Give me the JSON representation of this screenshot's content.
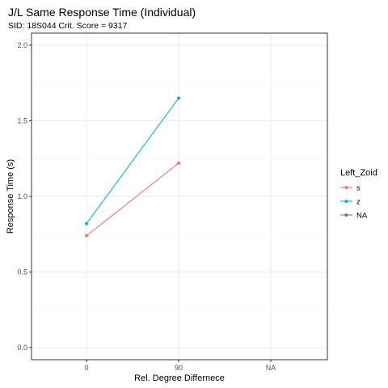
{
  "chart_data": {
    "type": "line",
    "title": "J/L Same Response Time (Individual)",
    "subtitle": "SID:  18S044 Crit. Score =  9317",
    "xlabel": "Rel. Degree Differnece",
    "ylabel": "Response Time (s)",
    "categories": [
      "0",
      "90",
      "NA"
    ],
    "ylim": [
      -0.08,
      2.08
    ],
    "yticks": [
      0.0,
      0.5,
      1.0,
      1.5,
      2.0
    ],
    "ytick_labels": [
      "0.0",
      "0.5",
      "1.0",
      "1.5",
      "2.0"
    ],
    "grid": true,
    "legend": {
      "title": "Left_Zoid",
      "placement": "right",
      "entries": [
        "s",
        "z",
        "NA"
      ]
    },
    "series": [
      {
        "name": "s",
        "color": "#F8766D",
        "x": [
          "0",
          "90"
        ],
        "values": [
          0.74,
          1.22
        ]
      },
      {
        "name": "z",
        "color": "#00BFC4",
        "x": [
          "0",
          "90"
        ],
        "values": [
          0.82,
          1.65
        ]
      },
      {
        "name": "NA",
        "color": "#7F7F7F",
        "x": [],
        "values": []
      }
    ]
  }
}
